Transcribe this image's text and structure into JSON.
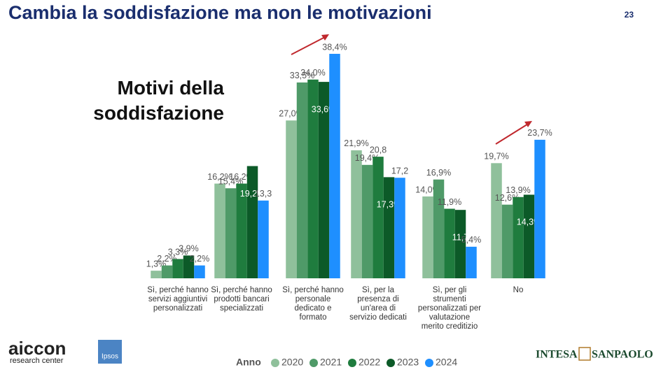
{
  "header": {
    "title": "Cambia la soddisfazione ma non le motivazioni",
    "page": "23"
  },
  "chart_data": {
    "type": "bar",
    "subtitle": "Motivi della soddisfazione",
    "categories": [
      "Sì, perché hanno servizi aggiuntivi personalizzati",
      "Sì, perché hanno prodotti bancari specializzati",
      "Sì, perché hanno personale dedicato e formato",
      "Sì, per la presenza di un'area di servizio dedicati",
      "Sì, per gli strumenti personalizzati per valutazione merito creditizio",
      "No"
    ],
    "legend_title": "Anno",
    "series": [
      {
        "name": "2020",
        "color": "#8fc09b",
        "values": [
          1.3,
          16.2,
          27.0,
          21.9,
          14.0,
          19.7
        ],
        "value_labels": [
          "1,3%",
          "16,2%",
          "27,0%",
          "21,9%",
          "14,0%",
          "19,7%"
        ]
      },
      {
        "name": "2021",
        "color": "#4f9a68",
        "values": [
          2.2,
          15.4,
          33.5,
          19.4,
          16.9,
          12.6
        ],
        "value_labels": [
          "2,2%",
          "15,4%",
          "33,5%",
          "19,4%",
          "16,9%",
          "12,6%"
        ]
      },
      {
        "name": "2022",
        "color": "#1f7c3e",
        "values": [
          3.3,
          16.2,
          34.0,
          20.8,
          11.9,
          13.9
        ],
        "value_labels": [
          "3,3%",
          "16,2%",
          "34,0%",
          "20,8",
          "11,9%",
          "13,9%"
        ]
      },
      {
        "name": "2023",
        "color": "#0c5a28",
        "values": [
          3.9,
          19.2,
          33.6,
          17.3,
          11.7,
          14.3
        ],
        "value_labels": [
          "3,9%",
          "19,2%",
          "33,6%",
          "17,3%",
          "11,7",
          "14,3%"
        ]
      },
      {
        "name": "2024",
        "color": "#1e8fff",
        "values": [
          2.2,
          13.3,
          38.4,
          17.2,
          5.4,
          23.7
        ],
        "value_labels": [
          "2,2%",
          "13,3",
          "38,4%",
          "17,2",
          "5,4%",
          "23,7%"
        ]
      }
    ]
  },
  "logos": {
    "aiccon": "aiccon",
    "aiccon_sub": "research center",
    "ipsos": "Ipsos",
    "intesa": "INTESA",
    "sanpaolo": "SANPAOLO"
  }
}
